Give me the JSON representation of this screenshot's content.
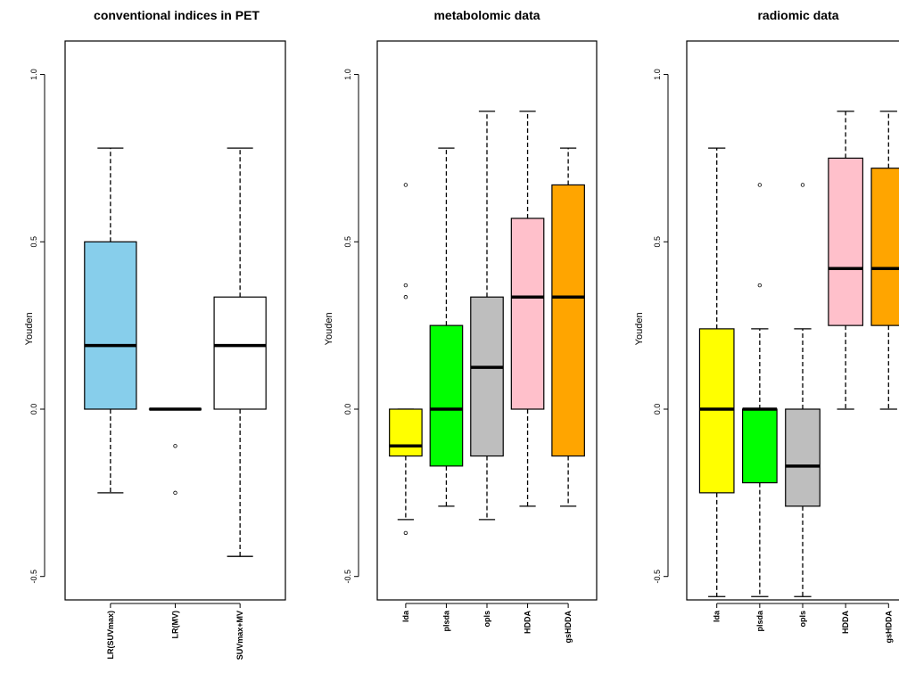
{
  "chart_data": [
    {
      "type": "box",
      "title": "conventional indices in PET",
      "ylabel": "Youden",
      "ylim": [
        -0.57,
        1.1
      ],
      "yticks": [
        -0.5,
        0.0,
        0.5,
        1.0
      ],
      "ytick_labels": [
        "-0.5",
        "0.0",
        "0.5",
        "1.0"
      ],
      "categories": [
        "LR(SUVmax)",
        "LR(MV)",
        "SUVmax+MV"
      ],
      "boxes": [
        {
          "name": "LR(SUVmax)",
          "color": "#87CEEB",
          "whisker_low": -0.25,
          "q1": 0.0,
          "median": 0.19,
          "q3": 0.5,
          "whisker_high": 0.78,
          "outliers": []
        },
        {
          "name": "LR(MV)",
          "color": "#ffffff",
          "whisker_low": 0.0,
          "q1": 0.0,
          "median": 0.0,
          "q3": 0.0,
          "whisker_high": 0.0,
          "outliers": [
            -0.11,
            -0.25
          ]
        },
        {
          "name": "SUVmax+MV",
          "color": "#ffffff",
          "whisker_low": -0.44,
          "q1": 0.0,
          "median": 0.19,
          "q3": 0.335,
          "whisker_high": 0.78,
          "outliers": []
        }
      ]
    },
    {
      "type": "box",
      "title": "metabolomic data",
      "ylabel": "Youden",
      "ylim": [
        -0.57,
        1.1
      ],
      "yticks": [
        -0.5,
        0.0,
        0.5,
        1.0
      ],
      "ytick_labels": [
        "-0.5",
        "0.0",
        "0.5",
        "1.0"
      ],
      "categories": [
        "lda",
        "plsda",
        "opls",
        "HDDA",
        "gsHDDA"
      ],
      "boxes": [
        {
          "name": "lda",
          "color": "#FFFF00",
          "whisker_low": -0.33,
          "q1": -0.14,
          "median": -0.11,
          "q3": 0.0,
          "whisker_high": 0.0,
          "outliers": [
            0.67,
            0.37,
            0.335,
            -0.37
          ]
        },
        {
          "name": "plsda",
          "color": "#00FF00",
          "whisker_low": -0.29,
          "q1": -0.17,
          "median": 0.0,
          "q3": 0.25,
          "whisker_high": 0.78,
          "outliers": []
        },
        {
          "name": "opls",
          "color": "#BEBEBE",
          "whisker_low": -0.33,
          "q1": -0.14,
          "median": 0.125,
          "q3": 0.335,
          "whisker_high": 0.89,
          "outliers": []
        },
        {
          "name": "HDDA",
          "color": "#FFC0CB",
          "whisker_low": -0.29,
          "q1": 0.0,
          "median": 0.335,
          "q3": 0.57,
          "whisker_high": 0.89,
          "outliers": []
        },
        {
          "name": "gsHDDA",
          "color": "#FFA500",
          "whisker_low": -0.29,
          "q1": -0.14,
          "median": 0.335,
          "q3": 0.67,
          "whisker_high": 0.78,
          "outliers": []
        }
      ]
    },
    {
      "type": "box",
      "title": "radiomic data",
      "ylabel": "Youden",
      "ylim": [
        -0.57,
        1.1
      ],
      "yticks": [
        -0.5,
        0.0,
        0.5,
        1.0
      ],
      "ytick_labels": [
        "-0.5",
        "0.0",
        "0.5",
        "1.0"
      ],
      "categories": [
        "lda",
        "plsda",
        "opls",
        "HDDA",
        "gsHDDA"
      ],
      "boxes": [
        {
          "name": "lda",
          "color": "#FFFF00",
          "whisker_low": -0.56,
          "q1": -0.25,
          "median": 0.0,
          "q3": 0.24,
          "whisker_high": 0.78,
          "outliers": []
        },
        {
          "name": "plsda",
          "color": "#00FF00",
          "whisker_low": -0.56,
          "q1": -0.22,
          "median": 0.0,
          "q3": 0.0,
          "whisker_high": 0.24,
          "outliers": [
            0.67,
            0.37
          ]
        },
        {
          "name": "opls",
          "color": "#BEBEBE",
          "whisker_low": -0.56,
          "q1": -0.29,
          "median": -0.17,
          "q3": 0.0,
          "whisker_high": 0.24,
          "outliers": [
            0.67
          ]
        },
        {
          "name": "HDDA",
          "color": "#FFC0CB",
          "whisker_low": 0.0,
          "q1": 0.25,
          "median": 0.42,
          "q3": 0.75,
          "whisker_high": 0.89,
          "outliers": []
        },
        {
          "name": "gsHDDA",
          "color": "#FFA500",
          "whisker_low": 0.0,
          "q1": 0.25,
          "median": 0.42,
          "q3": 0.72,
          "whisker_high": 0.89,
          "outliers": []
        }
      ]
    }
  ]
}
